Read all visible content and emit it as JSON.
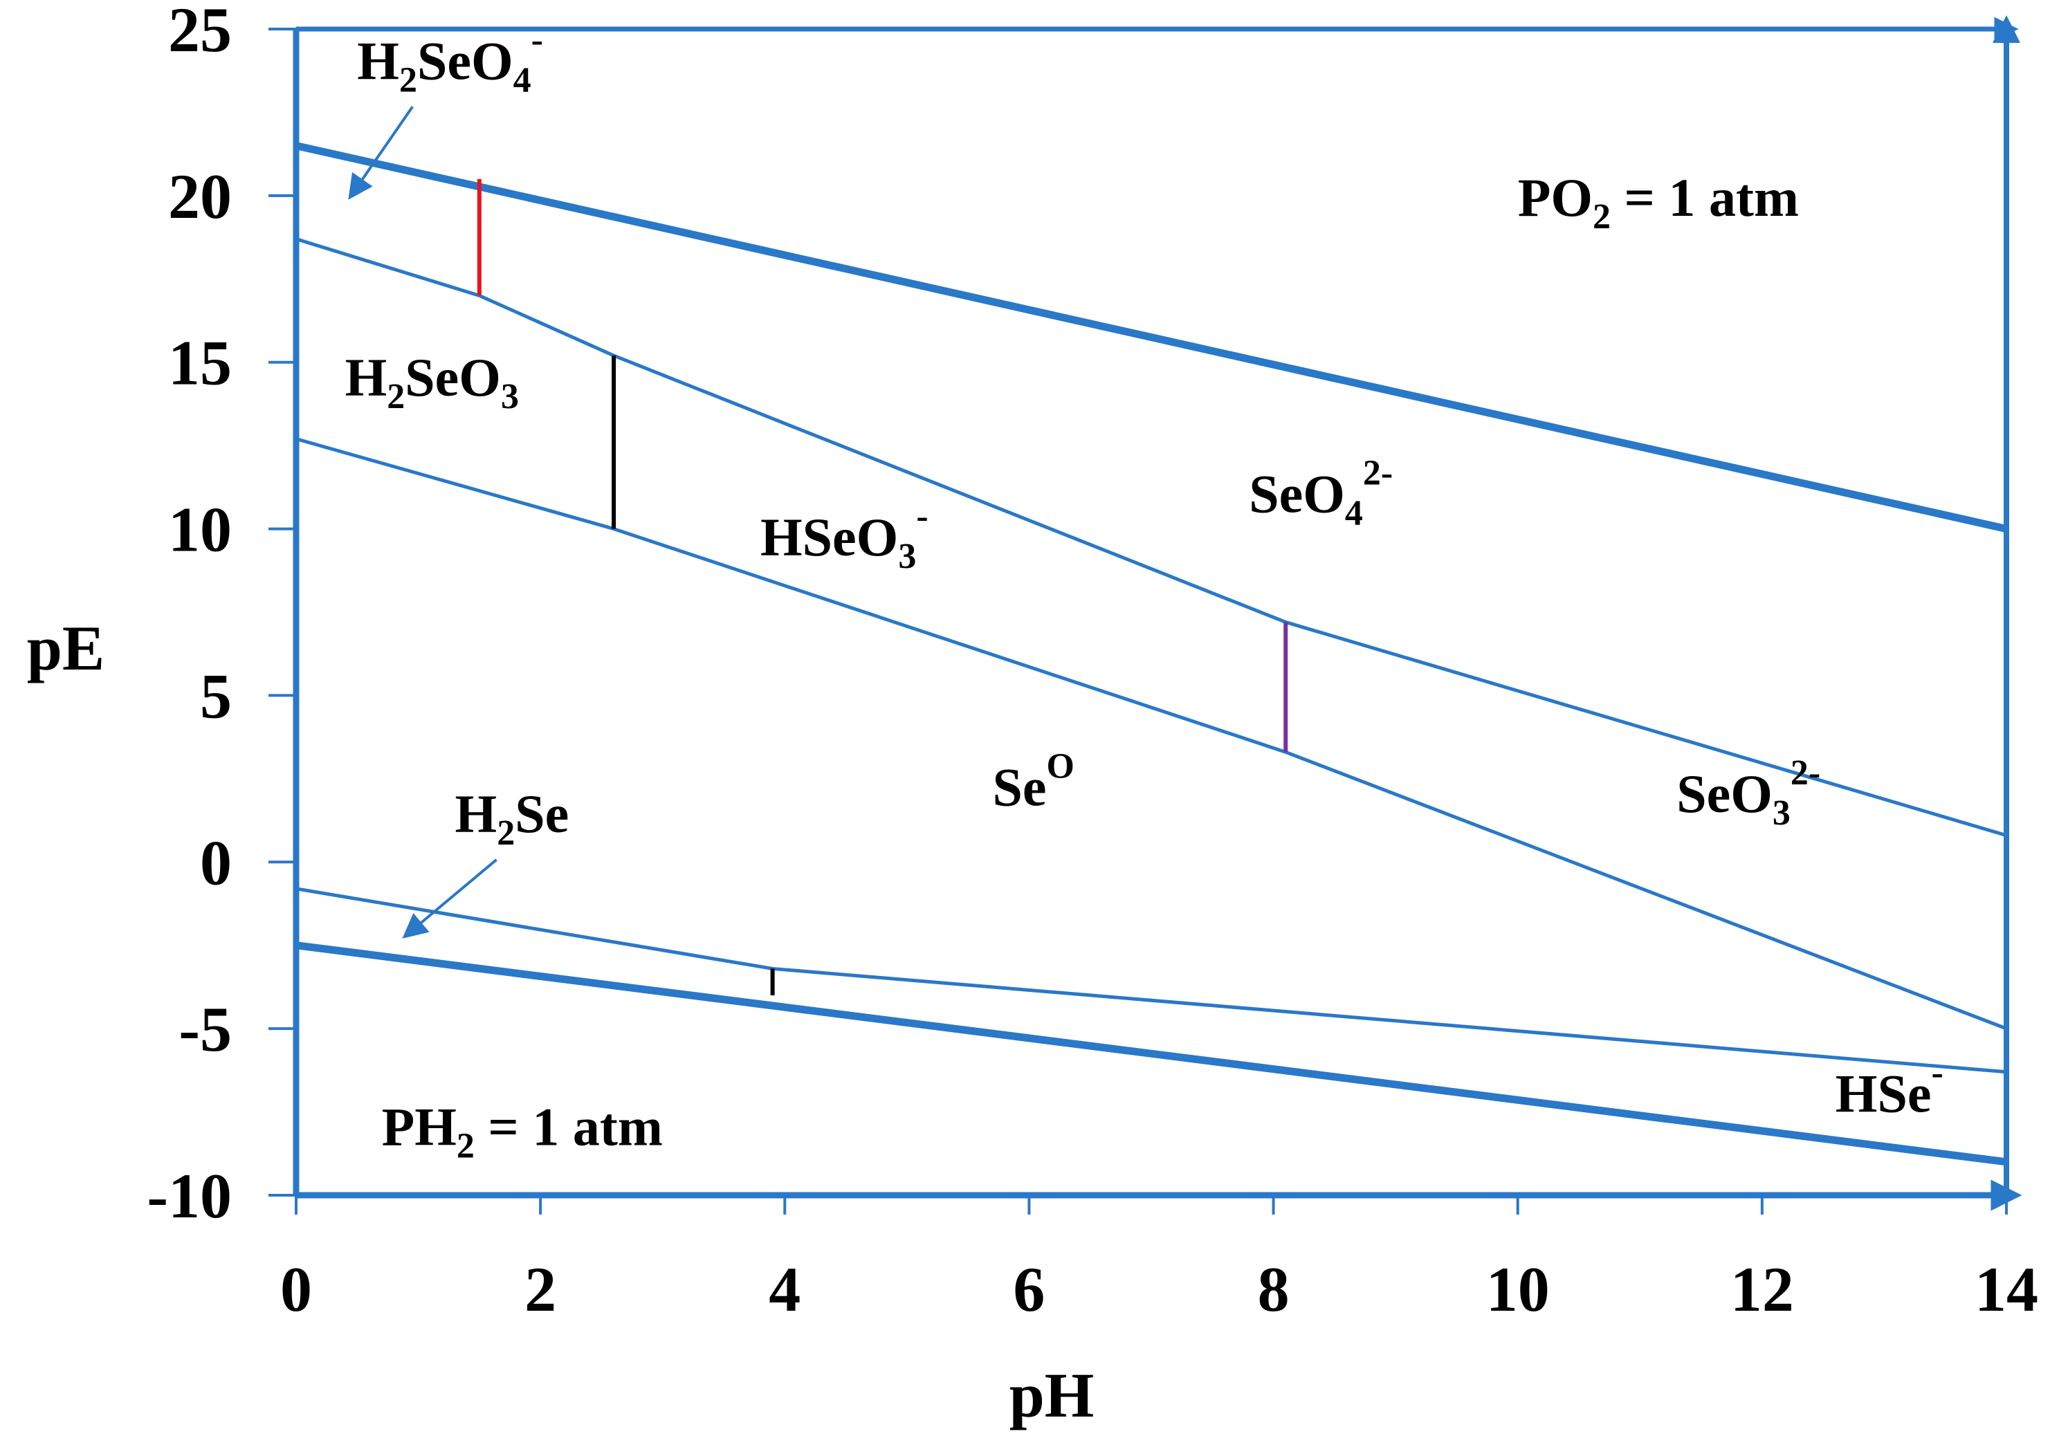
{
  "chart_data": {
    "type": "line",
    "xlabel": "pH",
    "ylabel": "pE",
    "xlim": [
      0,
      14
    ],
    "ylim": [
      -10,
      25
    ],
    "xticks": [
      "0",
      "2",
      "4",
      "6",
      "8",
      "10",
      "12",
      "14"
    ],
    "yticks": [
      "25",
      "20",
      "15",
      "10",
      "5",
      "0",
      "-5",
      "-10"
    ],
    "colors": {
      "axis": "#2a78c8",
      "line": "#2a78c8",
      "red": "#e8141c",
      "black": "#000000",
      "purple": "#7a2fa0"
    },
    "boundaries": [
      {
        "id": "o2-limit",
        "style": "thick",
        "color": "line",
        "points": [
          [
            0,
            21.5
          ],
          [
            14,
            10
          ]
        ]
      },
      {
        "id": "h2-limit",
        "style": "thick",
        "color": "line",
        "points": [
          [
            0,
            -2.5
          ],
          [
            14,
            -9
          ]
        ]
      },
      {
        "id": "selenate-selenite",
        "style": "thin",
        "color": "line",
        "points": [
          [
            0,
            18.7
          ],
          [
            1.5,
            17
          ],
          [
            2.6,
            15.2
          ],
          [
            8.1,
            7.2
          ],
          [
            14,
            0.8
          ]
        ]
      },
      {
        "id": "selenite-se0",
        "style": "thin",
        "color": "line",
        "points": [
          [
            0,
            12.7
          ],
          [
            2.6,
            10
          ],
          [
            8.1,
            3.3
          ],
          [
            14,
            -5
          ]
        ]
      },
      {
        "id": "se0-selenide",
        "style": "thin",
        "color": "line",
        "points": [
          [
            0,
            -0.8
          ],
          [
            3.9,
            -3.2
          ],
          [
            14,
            -6.3
          ]
        ]
      },
      {
        "id": "pka-h2seo4",
        "style": "vertical",
        "color": "red",
        "points": [
          [
            1.5,
            20.5
          ],
          [
            1.5,
            17
          ]
        ]
      },
      {
        "id": "pka-h2seo3",
        "style": "vertical",
        "color": "black",
        "points": [
          [
            2.6,
            15.2
          ],
          [
            2.6,
            10
          ]
        ]
      },
      {
        "id": "pka-hseo3",
        "style": "vertical",
        "color": "purple",
        "points": [
          [
            8.1,
            7.2
          ],
          [
            8.1,
            3.3
          ]
        ]
      },
      {
        "id": "pka-h2se",
        "style": "vertical",
        "color": "black",
        "points": [
          [
            3.9,
            -3.2
          ],
          [
            3.9,
            -4
          ]
        ]
      }
    ],
    "region_labels": [
      {
        "id": "h2seo4",
        "base": "H",
        "sub1": "2",
        "mid": "SeO",
        "sub2": "4",
        "sup": "-",
        "at": [
          0.5,
          23.5
        ],
        "arrow_to": [
          0.45,
          20
        ]
      },
      {
        "id": "po2",
        "base": "PO",
        "sub1": "2",
        "mid": " = 1 atm",
        "sub2": "",
        "sup": "",
        "at": [
          10,
          19.4
        ]
      },
      {
        "id": "h2seo3",
        "base": "H",
        "sub1": "2",
        "mid": "SeO",
        "sub2": "3",
        "sup": "",
        "at": [
          0.4,
          14
        ]
      },
      {
        "id": "seo4",
        "base": "SeO",
        "sub1": "4",
        "mid": "",
        "sub2": "",
        "sup": "2-",
        "at": [
          7.8,
          10.5
        ]
      },
      {
        "id": "hseo3",
        "base": "HSeO",
        "sub1": "3",
        "mid": "",
        "sub2": "",
        "sup": "-",
        "at": [
          3.8,
          9.2
        ]
      },
      {
        "id": "se0",
        "base": "Se",
        "sub1": "",
        "mid": "",
        "sub2": "",
        "sup": "O",
        "at": [
          5.7,
          1.7
        ]
      },
      {
        "id": "seo3",
        "base": "SeO",
        "sub1": "3",
        "mid": "",
        "sub2": "",
        "sup": "2-",
        "at": [
          11.3,
          1.5
        ]
      },
      {
        "id": "h2se",
        "base": "H",
        "sub1": "2",
        "mid": "Se",
        "sub2": "",
        "sup": "",
        "at": [
          1.3,
          0.9
        ],
        "arrow_to": [
          0.9,
          -2.2
        ]
      },
      {
        "id": "hse",
        "base": "HSe",
        "sub1": "",
        "mid": "",
        "sub2": "",
        "sup": "-",
        "at": [
          12.6,
          -7.5
        ]
      },
      {
        "id": "ph2",
        "base": "PH",
        "sub1": "2",
        "mid": " = 1 atm",
        "sub2": "",
        "sup": "",
        "at": [
          0.7,
          -8.5
        ]
      }
    ]
  }
}
